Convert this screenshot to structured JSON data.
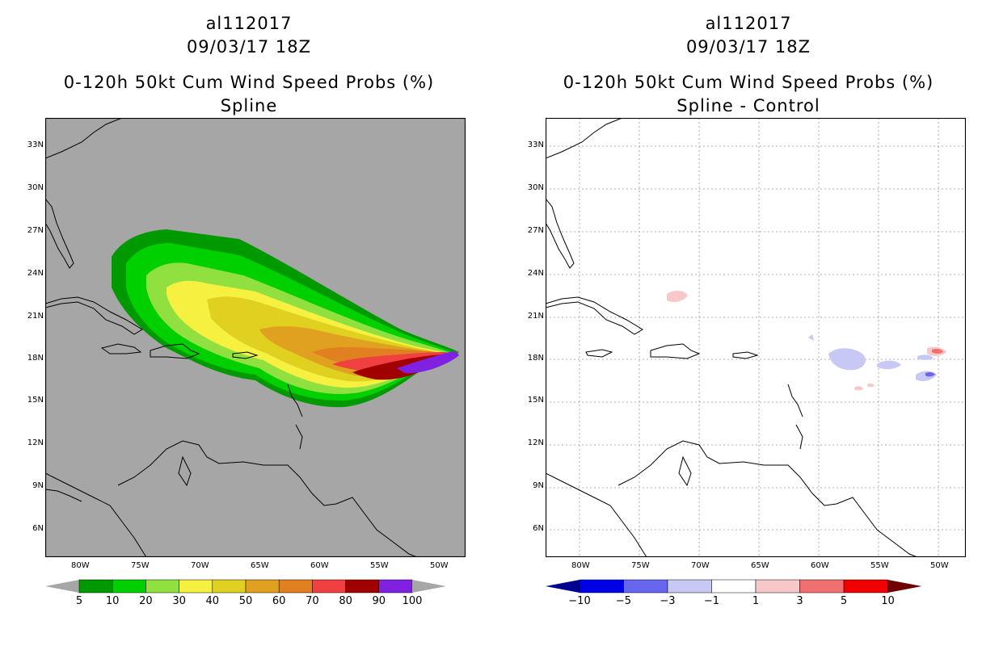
{
  "left": {
    "storm_id": "al112017",
    "datetime": "09/03/17 18Z",
    "product": "0-120h 50kt Cum Wind Speed Probs (%)",
    "subtitle": "Spline",
    "colorbar": {
      "labels": [
        "5",
        "10",
        "20",
        "30",
        "40",
        "50",
        "60",
        "70",
        "80",
        "90",
        "100"
      ],
      "colors": [
        "#009a00",
        "#00d000",
        "#90e040",
        "#f6f040",
        "#e0d020",
        "#e0a020",
        "#e08020",
        "#f04040",
        "#a00000",
        "#8020e0"
      ]
    }
  },
  "right": {
    "storm_id": "al112017",
    "datetime": "09/03/17 18Z",
    "product": "0-120h 50kt Cum Wind Speed Probs (%)",
    "subtitle": "Spline - Control",
    "colorbar": {
      "labels": [
        "−10",
        "−5",
        "−3",
        "−1",
        "1",
        "3",
        "5",
        "10"
      ],
      "colors": [
        "#0000e6",
        "#6666ee",
        "#c8c8f4",
        "#ffffff",
        "#f8c8c8",
        "#f07070",
        "#f00000"
      ]
    }
  },
  "lat_labels": [
    "33N",
    "30N",
    "27N",
    "24N",
    "21N",
    "18N",
    "15N",
    "12N",
    "9N",
    "6N"
  ],
  "lon_labels": [
    "80W",
    "75W",
    "70W",
    "65W",
    "60W",
    "55W",
    "50W"
  ],
  "colors": {
    "ocean_left": "#a6a6a6",
    "ocean_right": "#ffffff",
    "grid": "#888888"
  }
}
